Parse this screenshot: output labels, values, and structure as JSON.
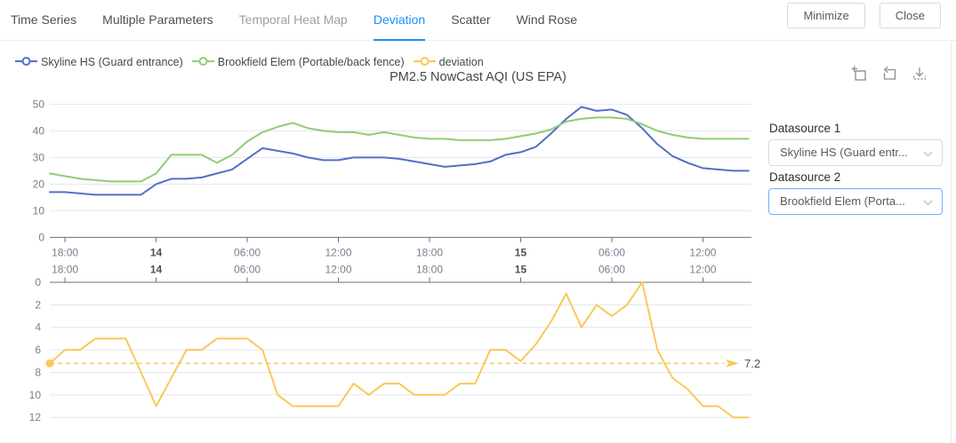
{
  "tabs": {
    "items": [
      {
        "label": "Time Series"
      },
      {
        "label": "Multiple Parameters"
      },
      {
        "label": "Temporal Heat Map"
      },
      {
        "label": "Deviation",
        "active": true
      },
      {
        "label": "Scatter"
      },
      {
        "label": "Wind Rose"
      }
    ]
  },
  "window_controls": {
    "minimize": "Minimize",
    "close": "Close"
  },
  "legend": {
    "items": [
      {
        "label": "Skyline HS (Guard entrance)",
        "color": "#5470C6"
      },
      {
        "label": "Brookfield Elem (Portable/back fence)",
        "color": "#91CC75"
      },
      {
        "label": "deviation",
        "color": "#FAC858"
      }
    ]
  },
  "toolbox": {
    "icons": [
      "data-zoom",
      "restore",
      "save-image"
    ]
  },
  "side_panel": {
    "datasource1_label": "Datasource 1",
    "datasource1_value": "Skyline HS (Guard entr...",
    "datasource2_label": "Datasource 2",
    "datasource2_value": "Brookfield Elem (Porta..."
  },
  "chart_data": [
    {
      "type": "line",
      "title": "PM2.5 NowCast AQI (US EPA)",
      "x_tick_labels": [
        "18:00",
        "14",
        "06:00",
        "12:00",
        "18:00",
        "15",
        "06:00",
        "12:00"
      ],
      "x_tick_bold": [
        false,
        true,
        false,
        false,
        false,
        true,
        false,
        false
      ],
      "x_tick_indices": [
        1,
        7,
        13,
        19,
        25,
        31,
        37,
        43
      ],
      "n_points": 47,
      "ylim": [
        0,
        50
      ],
      "yticks": [
        0,
        10,
        20,
        30,
        40,
        50
      ],
      "grid": true,
      "legend_position": "top",
      "series": [
        {
          "name": "Skyline HS (Guard entrance)",
          "color": "#5470C6",
          "values": [
            17,
            17,
            16.5,
            16,
            16,
            16,
            16,
            20,
            22,
            22,
            22.5,
            24,
            25.5,
            29.5,
            33.5,
            32.5,
            31.5,
            30,
            29,
            29,
            30,
            30,
            30,
            29.5,
            28.5,
            27.5,
            26.5,
            27,
            27.5,
            28.5,
            31,
            32,
            34,
            39,
            44.5,
            49,
            47.5,
            48,
            46,
            41,
            35,
            30.5,
            28,
            26,
            25.5,
            25,
            25
          ]
        },
        {
          "name": "Brookfield Elem (Portable/back fence)",
          "color": "#91CC75",
          "values": [
            24,
            23,
            22,
            21.5,
            21,
            21,
            21,
            24,
            31,
            31,
            31,
            28,
            31,
            36,
            39.5,
            41.5,
            43,
            41,
            40,
            39.5,
            39.5,
            38.5,
            39.5,
            38.5,
            37.5,
            37,
            37,
            36.5,
            36.5,
            36.5,
            37,
            38,
            39,
            40.5,
            43.5,
            44.5,
            45,
            45,
            44.5,
            42.5,
            40,
            38.5,
            37.5,
            37,
            37,
            37,
            37
          ]
        }
      ]
    },
    {
      "type": "line",
      "y_inverted": true,
      "x_tick_labels": [
        "18:00",
        "14",
        "06:00",
        "12:00",
        "18:00",
        "15",
        "06:00",
        "12:00"
      ],
      "x_tick_bold": [
        false,
        true,
        false,
        false,
        false,
        true,
        false,
        false
      ],
      "x_tick_indices": [
        1,
        7,
        13,
        19,
        25,
        31,
        37,
        43
      ],
      "n_points": 47,
      "ylim": [
        0,
        12
      ],
      "yticks": [
        0,
        2,
        4,
        6,
        8,
        10,
        12
      ],
      "grid": true,
      "series": [
        {
          "name": "deviation",
          "color": "#FAC858",
          "values": [
            7.2,
            6,
            6,
            5,
            5,
            5,
            8,
            11,
            8.5,
            6,
            6,
            5,
            5,
            5,
            6,
            10,
            11,
            11,
            11,
            11,
            9,
            10,
            9,
            9,
            10,
            10,
            10,
            9,
            9,
            6,
            6,
            7,
            5.5,
            3.5,
            1,
            4,
            2,
            3,
            2,
            0,
            6,
            8.5,
            9.5,
            11,
            11,
            12,
            12
          ]
        }
      ],
      "markline": {
        "value": 7.2,
        "label": "7.2",
        "style": "dashed",
        "arrow": true,
        "start_dot": true
      }
    }
  ]
}
